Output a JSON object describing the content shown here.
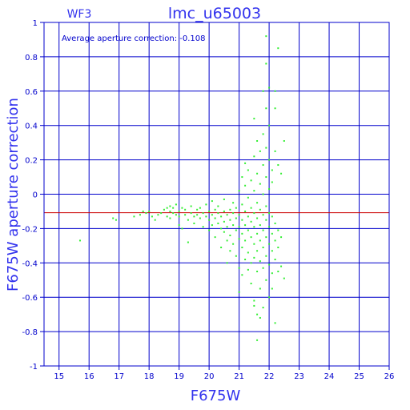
{
  "chart_data": {
    "type": "scatter",
    "title": "lmc_u65003",
    "panel_label": "WF3",
    "annotation": "Average aperture correction: -0.108",
    "xlabel": "F675W",
    "ylabel": "F675W aperture correction",
    "xlim": [
      14.5,
      26
    ],
    "ylim": [
      -1,
      1
    ],
    "x_ticks": [
      15,
      16,
      17,
      18,
      19,
      20,
      21,
      22,
      23,
      24,
      25,
      26
    ],
    "y_ticks": [
      -1,
      -0.8,
      -0.6,
      -0.4,
      -0.2,
      0,
      0.2,
      0.4,
      0.6,
      0.8,
      1
    ],
    "x_tick_labels": [
      "15",
      "16",
      "17",
      "18",
      "19",
      "20",
      "21",
      "22",
      "23",
      "24",
      "25",
      "26"
    ],
    "y_tick_labels": [
      "-1",
      "-0.8",
      "-0.6",
      "-0.4",
      "-0.2",
      "0",
      "0.2",
      "0.4",
      "0.6",
      "0.8",
      "1"
    ],
    "grid": true,
    "reference_line": {
      "y": -0.108,
      "color": "#cc0000"
    },
    "colors": {
      "frame": "#0000cc",
      "points": "#33ee33",
      "text": "#0000cc",
      "reference": "#cc0000"
    },
    "points": [
      [
        15.7,
        -0.27
      ],
      [
        16.8,
        -0.14
      ],
      [
        16.9,
        -0.15
      ],
      [
        17.5,
        -0.13
      ],
      [
        17.7,
        -0.12
      ],
      [
        17.8,
        -0.1
      ],
      [
        17.9,
        -0.11
      ],
      [
        18.0,
        -0.1
      ],
      [
        18.1,
        -0.13
      ],
      [
        18.2,
        -0.15
      ],
      [
        18.3,
        -0.12
      ],
      [
        18.4,
        -0.11
      ],
      [
        18.5,
        -0.09
      ],
      [
        18.6,
        -0.08
      ],
      [
        18.6,
        -0.13
      ],
      [
        18.7,
        -0.07
      ],
      [
        18.7,
        -0.1
      ],
      [
        18.7,
        -0.14
      ],
      [
        18.8,
        -0.11
      ],
      [
        18.8,
        -0.08
      ],
      [
        18.9,
        -0.12
      ],
      [
        18.9,
        -0.06
      ],
      [
        19.0,
        -0.13
      ],
      [
        19.0,
        -0.1
      ],
      [
        19.0,
        -0.18
      ],
      [
        19.1,
        -0.08
      ],
      [
        19.1,
        -0.2
      ],
      [
        19.2,
        -0.12
      ],
      [
        19.2,
        -0.09
      ],
      [
        19.3,
        -0.15
      ],
      [
        19.3,
        -0.28
      ],
      [
        19.4,
        -0.11
      ],
      [
        19.4,
        -0.07
      ],
      [
        19.5,
        -0.13
      ],
      [
        19.5,
        -0.17
      ],
      [
        19.6,
        -0.09
      ],
      [
        19.6,
        -0.12
      ],
      [
        19.7,
        -0.14
      ],
      [
        19.7,
        -0.08
      ],
      [
        19.8,
        -0.11
      ],
      [
        19.8,
        -0.19
      ],
      [
        19.9,
        -0.13
      ],
      [
        19.9,
        -0.06
      ],
      [
        20.0,
        -0.1
      ],
      [
        20.0,
        -0.15
      ],
      [
        20.0,
        -0.21
      ],
      [
        20.1,
        -0.12
      ],
      [
        20.1,
        -0.04
      ],
      [
        20.1,
        -0.18
      ],
      [
        20.2,
        -0.09
      ],
      [
        20.2,
        -0.14
      ],
      [
        20.2,
        -0.25
      ],
      [
        20.3,
        -0.11
      ],
      [
        20.3,
        -0.17
      ],
      [
        20.3,
        -0.07
      ],
      [
        20.4,
        -0.13
      ],
      [
        20.4,
        -0.2
      ],
      [
        20.4,
        -0.31
      ],
      [
        20.5,
        -0.1
      ],
      [
        20.5,
        -0.16
      ],
      [
        20.5,
        -0.22
      ],
      [
        20.5,
        -0.03
      ],
      [
        20.6,
        -0.12
      ],
      [
        20.6,
        -0.19
      ],
      [
        20.6,
        -0.27
      ],
      [
        20.6,
        -0.4
      ],
      [
        20.7,
        -0.09
      ],
      [
        20.7,
        -0.15
      ],
      [
        20.7,
        -0.24
      ],
      [
        20.7,
        -0.33
      ],
      [
        20.8,
        -0.11
      ],
      [
        20.8,
        -0.18
      ],
      [
        20.8,
        -0.05
      ],
      [
        20.8,
        -0.29
      ],
      [
        20.9,
        -0.14
      ],
      [
        20.9,
        -0.21
      ],
      [
        20.9,
        -0.36
      ],
      [
        20.9,
        -0.08
      ],
      [
        21.0,
        -0.12
      ],
      [
        21.0,
        -0.19
      ],
      [
        21.0,
        -0.26
      ],
      [
        21.0,
        -0.43
      ],
      [
        21.0,
        0.02
      ],
      [
        21.0,
        -0.57
      ],
      [
        21.1,
        -0.15
      ],
      [
        21.1,
        -0.23
      ],
      [
        21.1,
        -0.31
      ],
      [
        21.1,
        -0.06
      ],
      [
        21.1,
        0.1
      ],
      [
        21.1,
        -0.47
      ],
      [
        21.2,
        -0.1
      ],
      [
        21.2,
        -0.18
      ],
      [
        21.2,
        -0.27
      ],
      [
        21.2,
        -0.38
      ],
      [
        21.2,
        0.05
      ],
      [
        21.2,
        0.18
      ],
      [
        21.3,
        -0.13
      ],
      [
        21.3,
        -0.21
      ],
      [
        21.3,
        -0.34
      ],
      [
        21.3,
        -0.02
      ],
      [
        21.3,
        -0.44
      ],
      [
        21.3,
        0.14
      ],
      [
        21.4,
        -0.16
      ],
      [
        21.4,
        -0.25
      ],
      [
        21.4,
        -0.08
      ],
      [
        21.4,
        -0.4
      ],
      [
        21.4,
        0.08
      ],
      [
        21.4,
        -0.52
      ],
      [
        21.5,
        -0.11
      ],
      [
        21.5,
        -0.19
      ],
      [
        21.5,
        -0.29
      ],
      [
        21.5,
        0.02
      ],
      [
        21.5,
        0.22
      ],
      [
        21.5,
        -0.37
      ],
      [
        21.5,
        -0.62
      ],
      [
        21.5,
        -0.65
      ],
      [
        21.5,
        0.44
      ],
      [
        21.6,
        -0.14
      ],
      [
        21.6,
        -0.23
      ],
      [
        21.6,
        -0.33
      ],
      [
        21.6,
        -0.05
      ],
      [
        21.6,
        0.12
      ],
      [
        21.6,
        -0.45
      ],
      [
        21.6,
        -0.7
      ],
      [
        21.6,
        -0.85
      ],
      [
        21.6,
        0.31
      ],
      [
        21.7,
        -0.09
      ],
      [
        21.7,
        -0.18
      ],
      [
        21.7,
        -0.27
      ],
      [
        21.7,
        0.06
      ],
      [
        21.7,
        -0.39
      ],
      [
        21.7,
        0.25
      ],
      [
        21.7,
        -0.55
      ],
      [
        21.7,
        -0.72
      ],
      [
        21.8,
        -0.12
      ],
      [
        21.8,
        -0.21
      ],
      [
        21.8,
        -0.31
      ],
      [
        21.8,
        0.0
      ],
      [
        21.8,
        0.17
      ],
      [
        21.8,
        -0.43
      ],
      [
        21.8,
        0.6
      ],
      [
        21.8,
        0.35
      ],
      [
        21.8,
        -0.66
      ],
      [
        21.9,
        -0.15
      ],
      [
        21.9,
        -0.25
      ],
      [
        21.9,
        -0.07
      ],
      [
        21.9,
        -0.36
      ],
      [
        21.9,
        0.1
      ],
      [
        21.9,
        0.92
      ],
      [
        21.9,
        0.76
      ],
      [
        21.9,
        0.5
      ],
      [
        21.9,
        -0.5
      ],
      [
        21.9,
        0.27
      ],
      [
        22.0,
        -0.11
      ],
      [
        22.0,
        -0.19
      ],
      [
        22.0,
        -0.29
      ],
      [
        22.0,
        0.03
      ],
      [
        22.0,
        0.4
      ],
      [
        22.0,
        0.62
      ],
      [
        22.0,
        -0.41
      ],
      [
        22.0,
        0.2
      ],
      [
        22.0,
        -0.6
      ],
      [
        22.1,
        -0.13
      ],
      [
        22.1,
        -0.23
      ],
      [
        22.1,
        -0.33
      ],
      [
        22.1,
        0.07
      ],
      [
        22.1,
        -0.46
      ],
      [
        22.1,
        0.14
      ],
      [
        22.1,
        -0.55
      ],
      [
        22.2,
        -0.17
      ],
      [
        22.2,
        -0.27
      ],
      [
        22.2,
        0.5
      ],
      [
        22.2,
        0.6
      ],
      [
        22.2,
        -0.75
      ],
      [
        22.2,
        -0.38
      ],
      [
        22.2,
        0.25
      ],
      [
        22.3,
        0.85
      ],
      [
        22.3,
        -0.21
      ],
      [
        22.3,
        -0.31
      ],
      [
        22.3,
        0.17
      ],
      [
        22.3,
        -0.45
      ],
      [
        22.4,
        -0.25
      ],
      [
        22.4,
        0.12
      ],
      [
        22.4,
        -0.42
      ],
      [
        22.5,
        0.31
      ],
      [
        22.5,
        -0.49
      ]
    ]
  }
}
